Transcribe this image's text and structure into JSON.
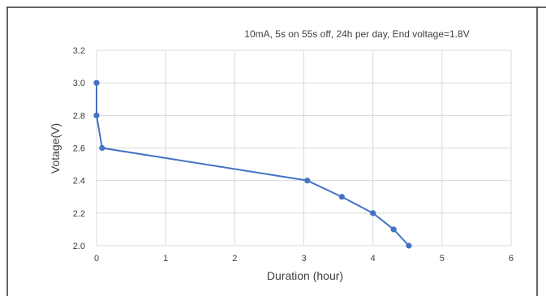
{
  "chart_data": {
    "type": "line",
    "title": "10mA, 5s on 55s off, 24h per day, End voltage=1.8V",
    "xlabel": "Duration (hour)",
    "ylabel": "Votage(V)",
    "xlim": [
      0,
      6
    ],
    "ylim": [
      2.0,
      3.2
    ],
    "x_ticks": [
      "0",
      "1",
      "2",
      "3",
      "4",
      "5",
      "6"
    ],
    "y_ticks": [
      "2.0",
      "2.2",
      "2.4",
      "2.6",
      "2.8",
      "3.0",
      "3.2"
    ],
    "grid": true,
    "series": [
      {
        "x": [
          0,
          0,
          0.08,
          3.05,
          3.55,
          4.0,
          4.3,
          4.52
        ],
        "y": [
          3.0,
          2.8,
          2.6,
          2.4,
          2.3,
          2.2,
          2.1,
          2.0
        ]
      }
    ],
    "colors": {
      "line": "#4472c4",
      "grid": "#d9d9d9",
      "frame": "#333333"
    }
  }
}
